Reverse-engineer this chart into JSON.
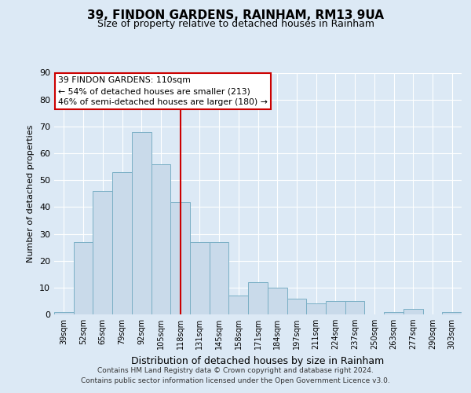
{
  "title": "39, FINDON GARDENS, RAINHAM, RM13 9UA",
  "subtitle": "Size of property relative to detached houses in Rainham",
  "xlabel": "Distribution of detached houses by size in Rainham",
  "ylabel": "Number of detached properties",
  "categories": [
    "39sqm",
    "52sqm",
    "65sqm",
    "79sqm",
    "92sqm",
    "105sqm",
    "118sqm",
    "131sqm",
    "145sqm",
    "158sqm",
    "171sqm",
    "184sqm",
    "197sqm",
    "211sqm",
    "224sqm",
    "237sqm",
    "250sqm",
    "263sqm",
    "277sqm",
    "290sqm",
    "303sqm"
  ],
  "values": [
    1,
    27,
    46,
    53,
    68,
    56,
    42,
    27,
    27,
    7,
    12,
    10,
    6,
    4,
    5,
    5,
    0,
    1,
    2,
    0,
    1
  ],
  "bar_color": "#c9daea",
  "bar_edge_color": "#7aafc5",
  "vline_x": 6,
  "vline_color": "#cc0000",
  "annotation_title": "39 FINDON GARDENS: 110sqm",
  "annotation_line1": "← 54% of detached houses are smaller (213)",
  "annotation_line2": "46% of semi-detached houses are larger (180) →",
  "annotation_box_color": "#ffffff",
  "annotation_box_edge_color": "#cc0000",
  "ylim": [
    0,
    90
  ],
  "yticks": [
    0,
    10,
    20,
    30,
    40,
    50,
    60,
    70,
    80,
    90
  ],
  "footer_line1": "Contains HM Land Registry data © Crown copyright and database right 2024.",
  "footer_line2": "Contains public sector information licensed under the Open Government Licence v3.0.",
  "background_color": "#dce9f5",
  "plot_bg_color": "#dce9f5",
  "grid_color": "#ffffff"
}
